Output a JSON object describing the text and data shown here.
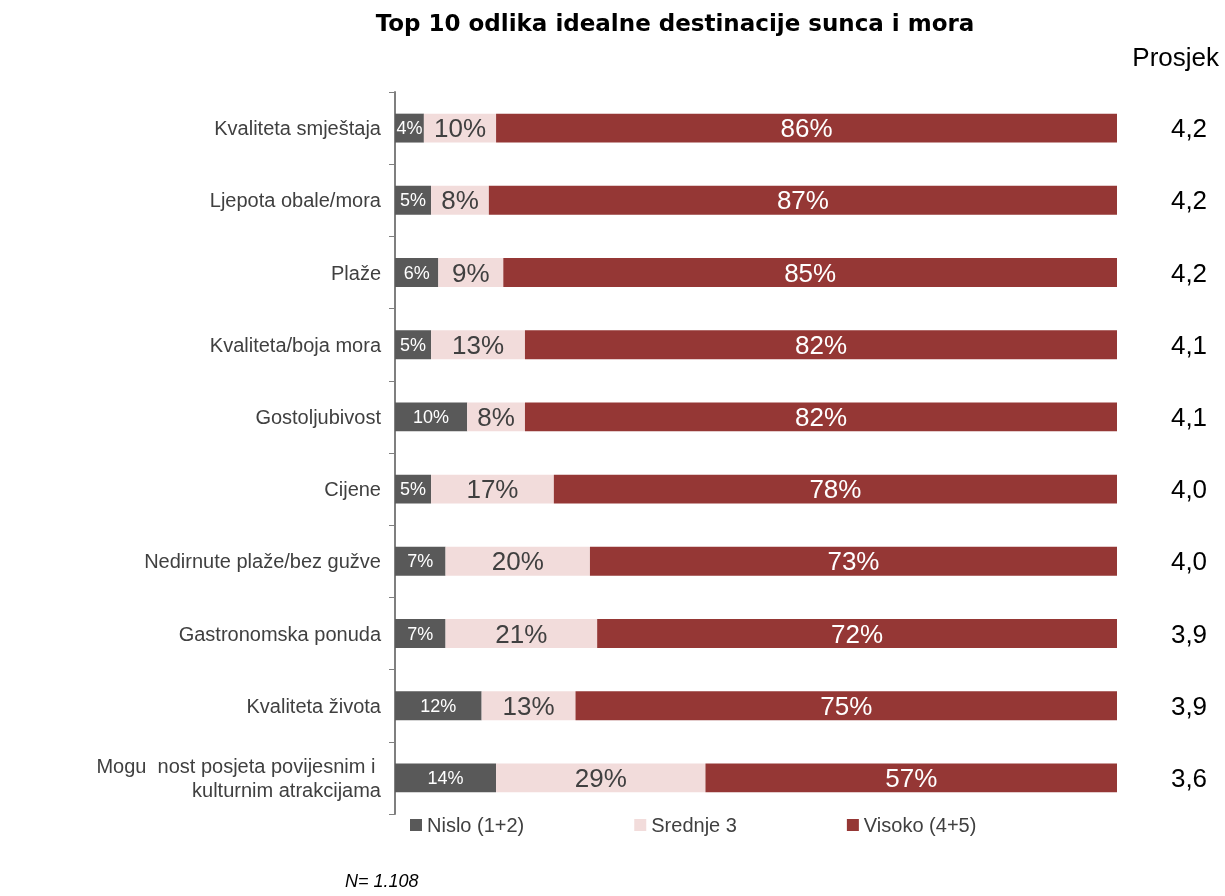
{
  "chart_data": {
    "type": "bar",
    "orientation": "horizontal",
    "stacked": true,
    "title": "Top 10 odlika idealne destinacije sunca i mora",
    "categories": [
      "Kvaliteta smještaja",
      "Ljepota obale/mora",
      "Plaže",
      "Kvaliteta/boja mora",
      "Gostoljubivost",
      "Cijene",
      "Nedirnute plaže/bez gužve",
      "Gastronomska ponuda",
      "Kvaliteta života",
      "Mogu  nost posjeta povijesnim i kulturnim atrakcijama"
    ],
    "series": [
      {
        "name": "Nislo (1+2)",
        "color": "#595959",
        "values": [
          4,
          5,
          6,
          5,
          10,
          5,
          7,
          7,
          12,
          14
        ],
        "value_labels": [
          "4%",
          "5%",
          "6%",
          "5%",
          "10%",
          "5%",
          "7%",
          "7%",
          "12%",
          "14%"
        ]
      },
      {
        "name": "Srednje 3",
        "color": "#f2dcdb",
        "values": [
          10,
          8,
          9,
          13,
          8,
          17,
          20,
          21,
          13,
          29
        ],
        "value_labels": [
          "10%",
          "8%",
          "9%",
          "13%",
          "8%",
          "17%",
          "20%",
          "21%",
          "13%",
          "29%"
        ]
      },
      {
        "name": "Visoko (4+5)",
        "color": "#953735",
        "values": [
          86,
          87,
          85,
          82,
          82,
          78,
          73,
          72,
          75,
          57
        ],
        "value_labels": [
          "86%",
          "87%",
          "85%",
          "82%",
          "82%",
          "78%",
          "73%",
          "72%",
          "75%",
          "57%"
        ]
      }
    ],
    "legend": "bottom",
    "annotations": [
      "Prosjek",
      "4,2",
      "4,2",
      "4,2",
      "4,1",
      "4,1",
      "4,0",
      "4,0",
      "3,9",
      "3,9",
      "3,6",
      "N= 1.108"
    ]
  }
}
